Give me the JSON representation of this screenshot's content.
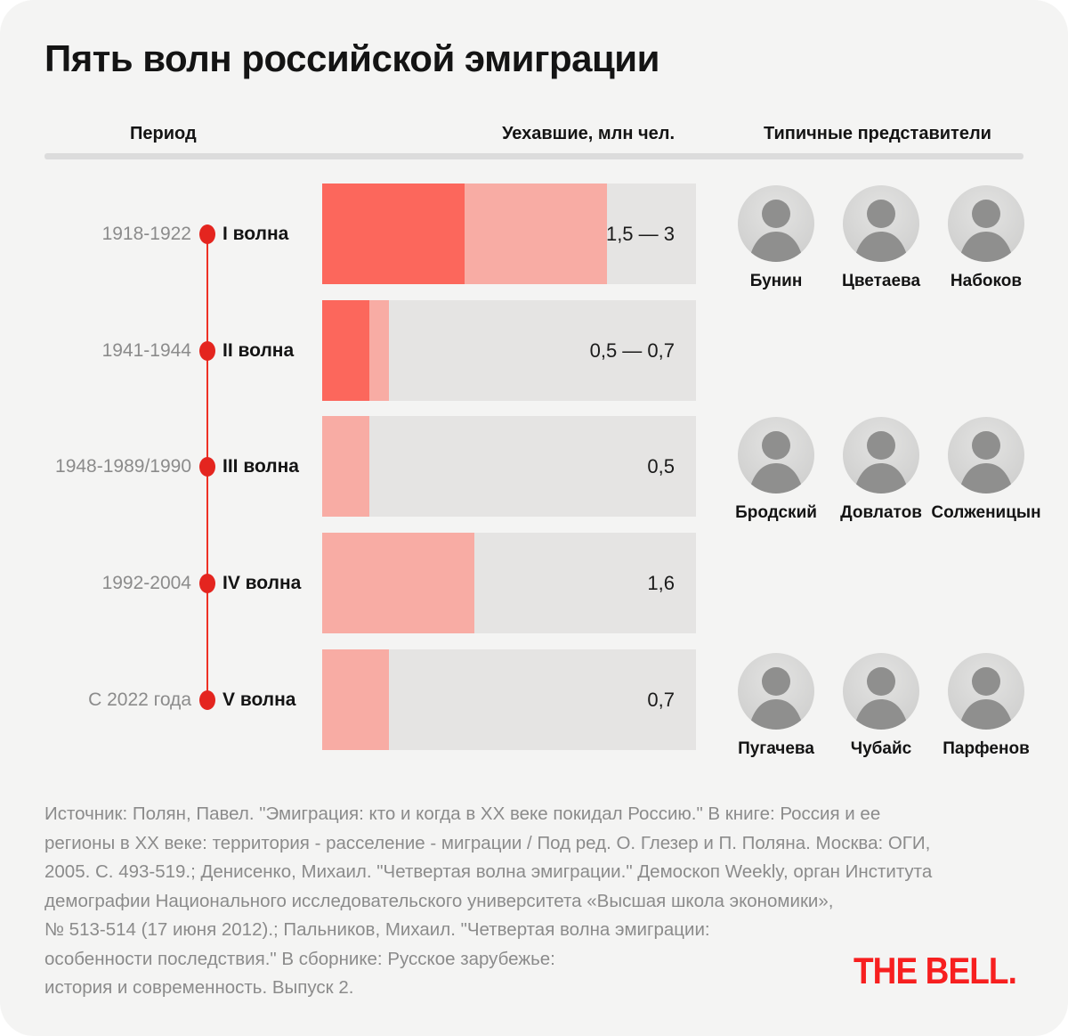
{
  "title": "Пять волн российской эмиграции",
  "columns": {
    "period": "Период",
    "emigrants": "Уехавшие, млн чел.",
    "representatives": "Типичные представители"
  },
  "chart_data": {
    "type": "bar",
    "title": "Пять волн российской эмиграции",
    "xlabel": "Уехавшие, млн чел.",
    "unit": "млн чел.",
    "xmax_mln": 3.94,
    "legend": "на каждой полосе тёмный сегмент — нижняя оценка, светлый — верхняя оценка",
    "rows": [
      {
        "period": "1918-1922",
        "wave": "I волна",
        "value_label": "1,5 — 3",
        "emigrants_mln_min": 1.5,
        "emigrants_mln_max": 3,
        "dark_mln": 1.5,
        "light_mln": 1.5,
        "representatives": [
          "Бунин",
          "Цветаева",
          "Набоков"
        ]
      },
      {
        "period": "1941-1944",
        "wave": "II волна",
        "value_label": "0,5 — 0,7",
        "emigrants_mln_min": 0.5,
        "emigrants_mln_max": 0.7,
        "dark_mln": 0.5,
        "light_mln": 0.2,
        "representatives": []
      },
      {
        "period": "1948-1989/1990",
        "wave": "III волна",
        "value_label": "0,5",
        "emigrants_mln_min": 0.5,
        "emigrants_mln_max": 0.5,
        "dark_mln": 0,
        "light_mln": 0.5,
        "representatives": [
          "Бродский",
          "Довлатов",
          "Солженицын"
        ]
      },
      {
        "period": "1992-2004",
        "wave": "IV волна",
        "value_label": "1,6",
        "emigrants_mln_min": 1.6,
        "emigrants_mln_max": 1.6,
        "dark_mln": 0,
        "light_mln": 1.6,
        "representatives": []
      },
      {
        "period": "С 2022 года",
        "wave": "V волна",
        "value_label": "0,7",
        "emigrants_mln_min": 0.7,
        "emigrants_mln_max": 0.7,
        "dark_mln": 0,
        "light_mln": 0.7,
        "representatives": [
          "Пугачева",
          "Чубайс",
          "Парфенов"
        ]
      }
    ]
  },
  "source": [
    "Источник: Полян, Павел. \"Эмиграция: кто и когда в XX веке покидал Россию.\" В книге: Россия и ее",
    "регионы в XX веке: территория - расселение - миграции / Под ред. О. Глезер и П. Поляна. Москва: ОГИ,",
    "2005. С. 493-519.; Денисенко, Михаил. \"Четвертая волна эмиграции.\" Демоскоп Weekly, орган Института",
    "демографии Национального исследовательского университета «Высшая школа экономики»,",
    "№ 513-514 (17 июня 2012).; Пальников, Михаил. \"Четвертая волна эмиграции:",
    "особенности последствия.\" В сборнике: Русское зарубежье:",
    "история и современность. Выпуск 2."
  ],
  "logo": "THE BELL.",
  "colors": {
    "card_bg": "#f4f4f3",
    "bar_dark": "#fc675c",
    "bar_light": "#f8aca4",
    "bar_track": "#e5e4e3",
    "dot_red": "#e4251f",
    "timeline_red": "#ee3124",
    "logo_red": "#f71f1f",
    "text_dark": "#141414",
    "text_gray": "#8b8b8b",
    "divider": "#dcdcdc"
  }
}
